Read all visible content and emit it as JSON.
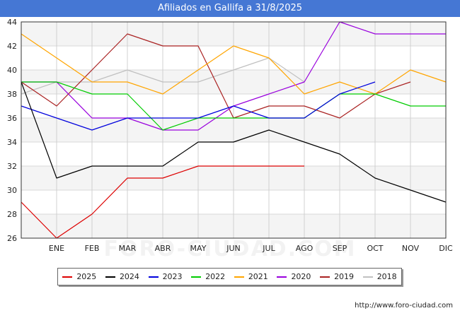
{
  "chart_data": {
    "type": "line",
    "title": "Afiliados en Gallifa a 31/8/2025",
    "categories": [
      "",
      "ENE",
      "FEB",
      "MAR",
      "ABR",
      "MAY",
      "JUN",
      "JUL",
      "AGO",
      "SEP",
      "OCT",
      "NOV",
      "DIC"
    ],
    "ylim": [
      26,
      44
    ],
    "yticks": [
      26,
      28,
      30,
      32,
      34,
      36,
      38,
      40,
      42,
      44
    ],
    "grid": true,
    "series": [
      {
        "name": "2025",
        "color": "#dd0000",
        "values": [
          29,
          26,
          28,
          31,
          31,
          32,
          32,
          32,
          32,
          null,
          null,
          null,
          null
        ]
      },
      {
        "name": "2024",
        "color": "#000000",
        "values": [
          39,
          31,
          32,
          32,
          32,
          34,
          34,
          35,
          34,
          33,
          31,
          30,
          29
        ]
      },
      {
        "name": "2023",
        "color": "#0000dd",
        "values": [
          37,
          36,
          35,
          36,
          36,
          36,
          37,
          36,
          36,
          38,
          39,
          null,
          null
        ]
      },
      {
        "name": "2022",
        "color": "#00cc00",
        "values": [
          39,
          39,
          38,
          38,
          35,
          36,
          36,
          36,
          36,
          38,
          38,
          37,
          37
        ]
      },
      {
        "name": "2021",
        "color": "#ffa500",
        "values": [
          43,
          41,
          39,
          39,
          38,
          40,
          42,
          41,
          38,
          39,
          38,
          40,
          39
        ]
      },
      {
        "name": "2020",
        "color": "#9900dd",
        "values": [
          39,
          39,
          36,
          36,
          35,
          35,
          37,
          38,
          39,
          44,
          43,
          43,
          43
        ]
      },
      {
        "name": "2019",
        "color": "#aa2222",
        "values": [
          39,
          37,
          40,
          43,
          42,
          42,
          36,
          37,
          37,
          36,
          38,
          39,
          null
        ]
      },
      {
        "name": "2018",
        "color": "#c0c0c0",
        "values": [
          38,
          39,
          39,
          40,
          39,
          39,
          40,
          41,
          39,
          null,
          null,
          null,
          null
        ]
      }
    ]
  },
  "source_url": "http://www.foro-ciudad.com",
  "watermark": "FORO-CIUDAD.COM"
}
